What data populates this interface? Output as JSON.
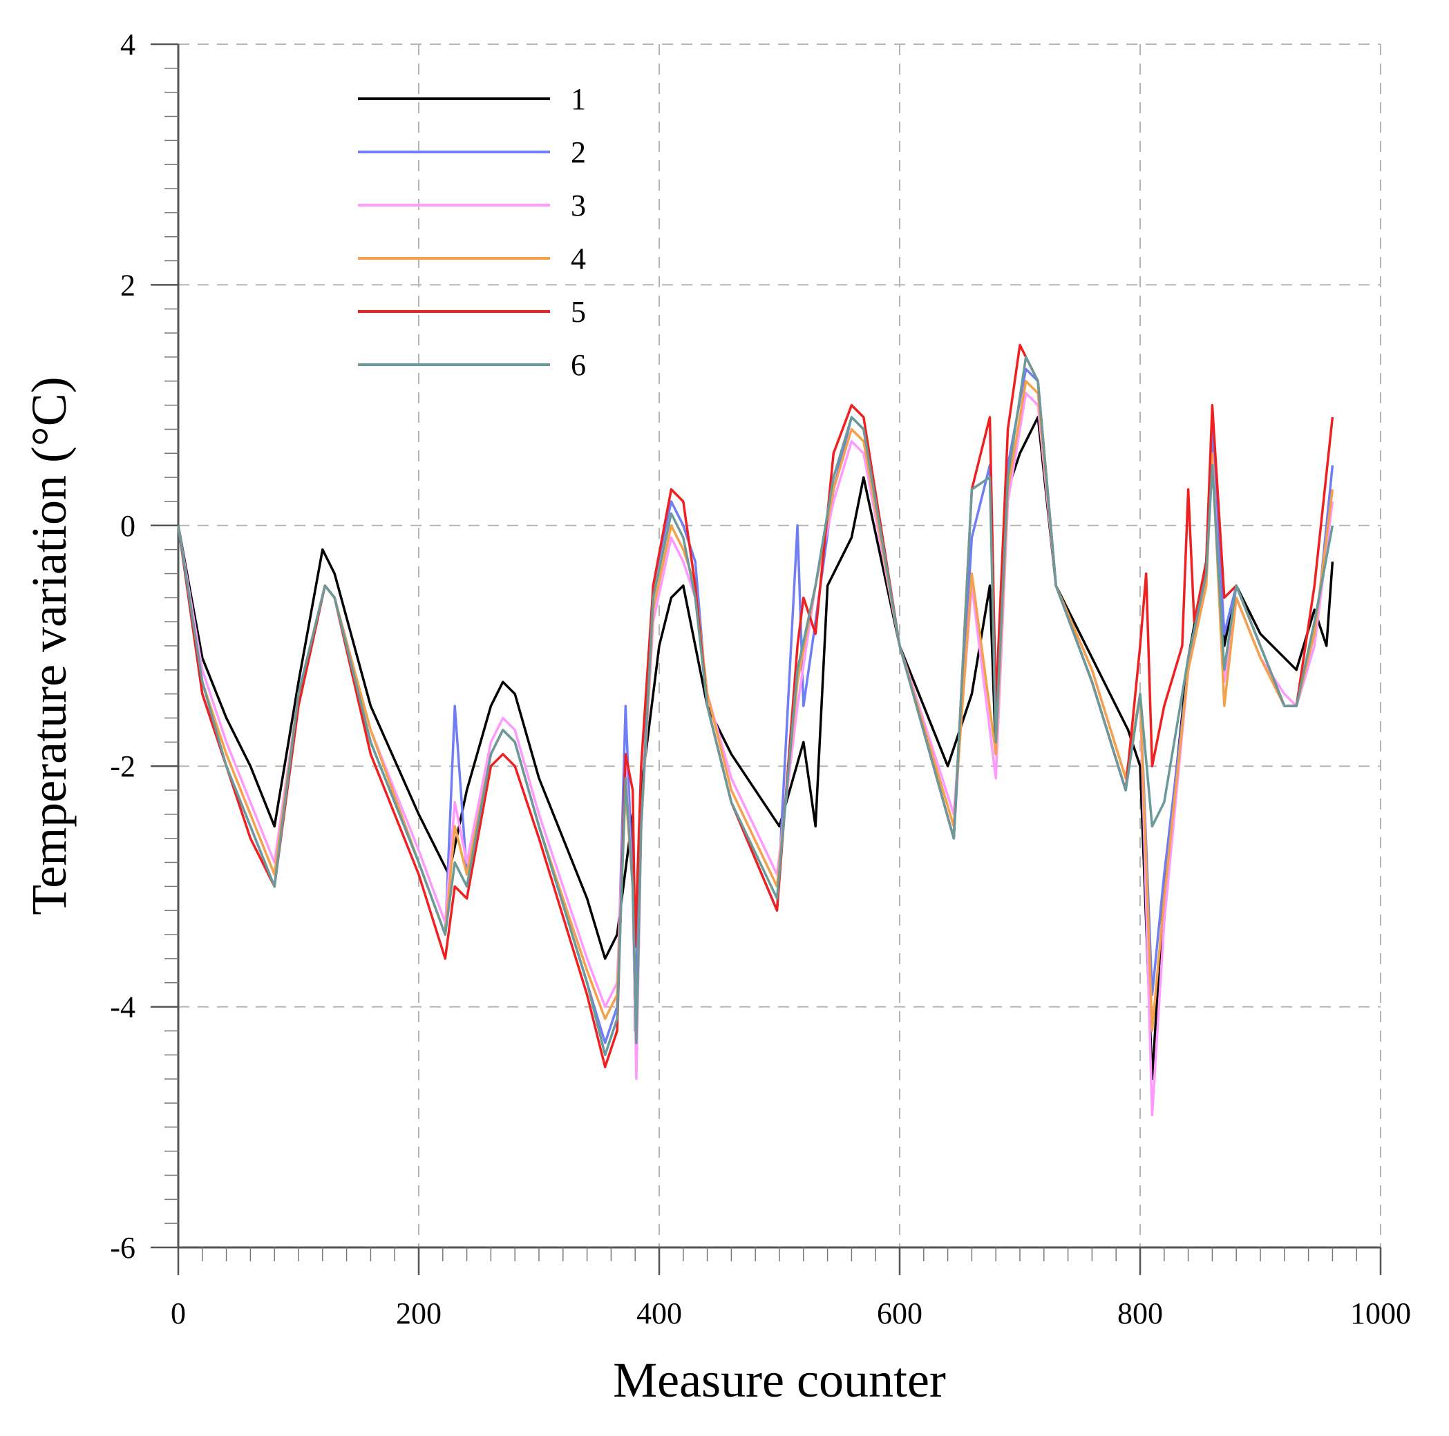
{
  "chart_data": {
    "type": "line",
    "title": "",
    "xlabel": "Measure counter",
    "ylabel": "Temperature variation (°C)",
    "xlim": [
      0,
      1000
    ],
    "ylim": [
      -6,
      4
    ],
    "x_ticks": [
      0,
      200,
      400,
      600,
      800,
      1000
    ],
    "x_tick_labels": [
      "0",
      "200",
      "400",
      "600",
      "800",
      "1000"
    ],
    "y_ticks": [
      -6,
      -4,
      -2,
      0,
      2,
      4
    ],
    "y_tick_labels": [
      "-6",
      "-4",
      "-2",
      "0",
      "2",
      "4"
    ],
    "grid": true,
    "legend_position": "top-left",
    "series": [
      {
        "name": "1",
        "color": "#000000",
        "x": [
          0,
          20,
          40,
          60,
          80,
          100,
          120,
          130,
          160,
          200,
          225,
          240,
          260,
          270,
          280,
          300,
          340,
          355,
          365,
          378,
          380,
          385,
          400,
          410,
          420,
          430,
          440,
          460,
          500,
          520,
          530,
          540,
          560,
          570,
          600,
          640,
          660,
          675,
          680,
          690,
          700,
          715,
          730,
          760,
          790,
          800,
          810,
          820,
          840,
          855,
          860,
          870,
          880,
          900,
          930,
          945,
          955,
          960
        ],
        "y": [
          0,
          -1.1,
          -1.6,
          -2,
          -2.5,
          -1.3,
          -0.2,
          -0.4,
          -1.5,
          -2.4,
          -2.9,
          -2.2,
          -1.5,
          -1.3,
          -1.4,
          -2.1,
          -3.1,
          -3.6,
          -3.4,
          -2.4,
          -4.2,
          -2.2,
          -1,
          -0.6,
          -0.5,
          -1,
          -1.5,
          -1.9,
          -2.5,
          -1.8,
          -2.5,
          -0.5,
          -0.1,
          0.4,
          -1,
          -2,
          -1.4,
          -0.5,
          -1.9,
          0.3,
          0.6,
          0.9,
          -0.5,
          -1.1,
          -1.7,
          -2,
          -4.6,
          -3,
          -1.1,
          -0.3,
          0.5,
          -1,
          -0.5,
          -0.9,
          -1.2,
          -0.7,
          -1,
          -0.3
        ]
      },
      {
        "name": "2",
        "color": "#6f7ef5",
        "x": [
          0,
          20,
          40,
          60,
          80,
          100,
          122,
          130,
          160,
          200,
          222,
          230,
          240,
          260,
          270,
          280,
          300,
          340,
          355,
          365,
          372,
          378,
          380,
          385,
          395,
          410,
          420,
          430,
          440,
          460,
          498,
          515,
          520,
          530,
          545,
          560,
          570,
          600,
          645,
          660,
          675,
          680,
          690,
          705,
          715,
          730,
          760,
          788,
          800,
          810,
          820,
          840,
          855,
          860,
          870,
          880,
          900,
          920,
          930,
          945,
          960
        ],
        "y": [
          0,
          -1.4,
          -2,
          -2.5,
          -3,
          -1.4,
          -0.5,
          -0.6,
          -1.8,
          -2.8,
          -3.4,
          -1.5,
          -2.9,
          -1.9,
          -1.7,
          -1.8,
          -2.5,
          -3.8,
          -4.3,
          -4,
          -1.5,
          -3,
          -4.1,
          -2.5,
          -0.5,
          0.2,
          0,
          -0.3,
          -1.5,
          -2.3,
          -3.2,
          0,
          -1.5,
          -0.8,
          0.3,
          0.9,
          0.8,
          -1,
          -2.6,
          -0.1,
          0.5,
          -1.7,
          0.5,
          1.3,
          1.2,
          -0.5,
          -1.3,
          -2.2,
          -1.4,
          -3.9,
          -2.9,
          -1.2,
          -0.4,
          0.8,
          -0.9,
          -0.5,
          -1,
          -1.5,
          -1.5,
          -1,
          0.5
        ]
      },
      {
        "name": "3",
        "color": "#ff99ff",
        "x": [
          0,
          20,
          40,
          60,
          80,
          100,
          122,
          130,
          160,
          200,
          222,
          230,
          240,
          260,
          270,
          280,
          300,
          340,
          355,
          365,
          372,
          378,
          381,
          385,
          395,
          410,
          420,
          430,
          440,
          460,
          498,
          515,
          530,
          545,
          560,
          570,
          600,
          645,
          660,
          680,
          690,
          705,
          715,
          730,
          760,
          788,
          800,
          810,
          820,
          840,
          855,
          860,
          870,
          880,
          900,
          920,
          930,
          945,
          960
        ],
        "y": [
          0,
          -1.2,
          -1.8,
          -2.3,
          -2.8,
          -1.4,
          -0.5,
          -0.6,
          -1.7,
          -2.7,
          -3.3,
          -2.3,
          -2.8,
          -1.8,
          -1.6,
          -1.7,
          -2.4,
          -3.6,
          -4,
          -3.8,
          -2,
          -3,
          -4.6,
          -2.5,
          -0.8,
          -0.1,
          -0.3,
          -0.6,
          -1.4,
          -2.1,
          -2.9,
          -1.5,
          -0.5,
          0.2,
          0.7,
          0.6,
          -1,
          -2.4,
          -0.5,
          -2.1,
          0.2,
          1.1,
          1,
          -0.5,
          -1.2,
          -2.1,
          -1.4,
          -4.9,
          -3.3,
          -1.2,
          -0.5,
          0.6,
          -1.3,
          -0.6,
          -1.1,
          -1.4,
          -1.5,
          -1,
          0.2
        ]
      },
      {
        "name": "4",
        "color": "#f5a04a",
        "x": [
          0,
          20,
          40,
          60,
          80,
          100,
          122,
          130,
          160,
          200,
          222,
          230,
          240,
          260,
          270,
          280,
          300,
          340,
          355,
          365,
          372,
          378,
          381,
          385,
          395,
          410,
          420,
          430,
          440,
          460,
          498,
          515,
          530,
          545,
          560,
          570,
          600,
          645,
          660,
          680,
          690,
          705,
          715,
          730,
          760,
          788,
          800,
          810,
          820,
          840,
          855,
          860,
          870,
          880,
          900,
          920,
          930,
          945,
          960
        ],
        "y": [
          0,
          -1.3,
          -1.9,
          -2.4,
          -2.9,
          -1.4,
          -0.5,
          -0.6,
          -1.7,
          -2.8,
          -3.4,
          -2.5,
          -2.9,
          -1.9,
          -1.7,
          -1.8,
          -2.5,
          -3.7,
          -4.1,
          -3.9,
          -2.2,
          -3,
          -4.3,
          -2.5,
          -0.7,
          0,
          -0.2,
          -0.5,
          -1.4,
          -2.2,
          -3,
          -1.3,
          -0.5,
          0.3,
          0.8,
          0.7,
          -1,
          -2.5,
          -0.4,
          -1.9,
          0.3,
          1.2,
          1.1,
          -0.5,
          -1.2,
          -2.1,
          -1.4,
          -4.2,
          -3.1,
          -1.2,
          -0.5,
          0.6,
          -1.5,
          -0.6,
          -1.1,
          -1.5,
          -1.5,
          -0.9,
          0.3
        ]
      },
      {
        "name": "5",
        "color": "#f02020",
        "x": [
          0,
          20,
          40,
          60,
          80,
          100,
          122,
          130,
          160,
          200,
          222,
          230,
          240,
          260,
          270,
          280,
          300,
          340,
          355,
          365,
          372,
          378,
          380,
          385,
          395,
          410,
          420,
          430,
          440,
          460,
          498,
          515,
          520,
          530,
          545,
          560,
          570,
          600,
          645,
          660,
          675,
          680,
          690,
          700,
          715,
          730,
          760,
          788,
          800,
          805,
          810,
          820,
          835,
          840,
          845,
          855,
          860,
          870,
          880,
          900,
          920,
          930,
          945,
          960
        ],
        "y": [
          0,
          -1.4,
          -2,
          -2.6,
          -3,
          -1.5,
          -0.5,
          -0.6,
          -1.9,
          -2.9,
          -3.6,
          -3,
          -3.1,
          -2,
          -1.9,
          -2,
          -2.6,
          -3.9,
          -4.5,
          -4.2,
          -1.9,
          -2.2,
          -3.5,
          -2,
          -0.5,
          0.3,
          0.2,
          -0.5,
          -1.5,
          -2.3,
          -3.2,
          -1,
          -0.6,
          -0.9,
          0.6,
          1,
          0.9,
          -1,
          -2.6,
          0.3,
          0.9,
          -1.5,
          0.8,
          1.5,
          1.2,
          -0.5,
          -1.3,
          -2.2,
          -1,
          -0.4,
          -2,
          -1.5,
          -1,
          0.3,
          -0.8,
          -0.3,
          1,
          -0.6,
          -0.5,
          -1,
          -1.5,
          -1.5,
          -0.5,
          0.9
        ]
      },
      {
        "name": "6",
        "color": "#6a9a9a",
        "x": [
          0,
          20,
          40,
          60,
          80,
          100,
          122,
          130,
          160,
          200,
          222,
          230,
          240,
          260,
          270,
          280,
          300,
          340,
          355,
          365,
          372,
          378,
          381,
          385,
          395,
          410,
          420,
          430,
          440,
          460,
          498,
          515,
          530,
          545,
          560,
          570,
          600,
          645,
          660,
          675,
          680,
          690,
          705,
          715,
          730,
          760,
          788,
          800,
          810,
          820,
          840,
          855,
          860,
          870,
          880,
          900,
          920,
          930,
          945,
          960
        ],
        "y": [
          0,
          -1.3,
          -2,
          -2.5,
          -3,
          -1.4,
          -0.5,
          -0.6,
          -1.8,
          -2.8,
          -3.4,
          -2.8,
          -3,
          -1.9,
          -1.7,
          -1.8,
          -2.5,
          -3.8,
          -4.4,
          -4.1,
          -2.1,
          -3,
          -4.3,
          -2.5,
          -0.6,
          0.1,
          -0.1,
          -0.6,
          -1.5,
          -2.3,
          -3.1,
          -1.2,
          -0.5,
          0.4,
          0.9,
          0.8,
          -1,
          -2.6,
          0.3,
          0.4,
          -1.8,
          0.4,
          1.4,
          1.2,
          -0.5,
          -1.3,
          -2.2,
          -1.4,
          -2.5,
          -2.3,
          -1.1,
          -0.4,
          0.5,
          -1.2,
          -0.5,
          -1,
          -1.5,
          -1.5,
          -0.8,
          0
        ]
      }
    ]
  }
}
